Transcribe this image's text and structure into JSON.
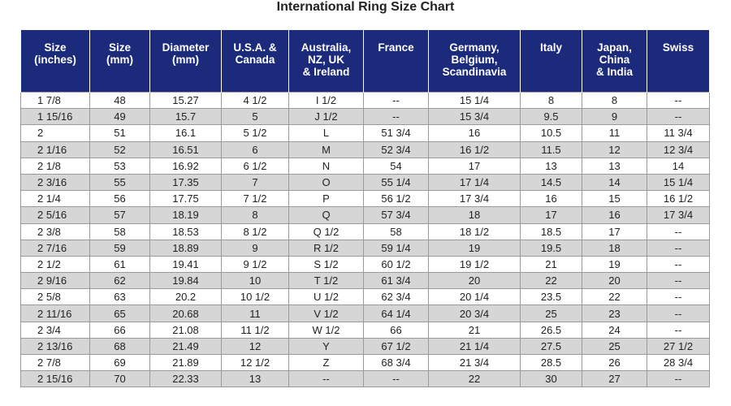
{
  "title": "International Ring Size Chart",
  "table": {
    "headers": [
      "Size\n(inches)",
      "Size\n(mm)",
      "Diameter\n(mm)",
      "U.S.A. &\nCanada",
      "Australia,\nNZ, UK\n& Ireland",
      "France",
      "Germany,\nBelgium,\nScandinavia",
      "Italy",
      "Japan,\nChina\n& India",
      "Swiss"
    ],
    "rows": [
      [
        "1  7/8",
        "48",
        "15.27",
        "4 1/2",
        "I 1/2",
        "--",
        "15 1/4",
        "8",
        "8",
        "--"
      ],
      [
        "1 15/16",
        "49",
        "15.7",
        "5",
        "J 1/2",
        "--",
        "15 3/4",
        "9.5",
        "9",
        "--"
      ],
      [
        "2",
        "51",
        "16.1",
        "5 1/2",
        "L",
        "51 3/4",
        "16",
        "10.5",
        "11",
        "11 3/4"
      ],
      [
        "2  1/16",
        "52",
        "16.51",
        "6",
        "M",
        "52 3/4",
        "16 1/2",
        "11.5",
        "12",
        "12 3/4"
      ],
      [
        "2  1/8",
        "53",
        "16.92",
        "6 1/2",
        "N",
        "54",
        "17",
        "13",
        "13",
        "14"
      ],
      [
        "2  3/16",
        "55",
        "17.35",
        "7",
        "O",
        "55 1/4",
        "17 1/4",
        "14.5",
        "14",
        "15 1/4"
      ],
      [
        "2  1/4",
        "56",
        "17.75",
        "7 1/2",
        "P",
        "56 1/2",
        "17 3/4",
        "16",
        "15",
        "16 1/2"
      ],
      [
        "2  5/16",
        "57",
        "18.19",
        "8",
        "Q",
        "57 3/4",
        "18",
        "17",
        "16",
        "17 3/4"
      ],
      [
        "2  3/8",
        "58",
        "18.53",
        "8 1/2",
        "Q 1/2",
        "58",
        "18 1/2",
        "18.5",
        "17",
        "--"
      ],
      [
        "2  7/16",
        "59",
        "18.89",
        "9",
        "R 1/2",
        "59 1/4",
        "19",
        "19.5",
        "18",
        "--"
      ],
      [
        "2  1/2",
        "61",
        "19.41",
        "9 1/2",
        "S 1/2",
        "60 1/2",
        "19 1/2",
        "21",
        "19",
        "--"
      ],
      [
        "2  9/16",
        "62",
        "19.84",
        "10",
        "T 1/2",
        "61 3/4",
        "20",
        "22",
        "20",
        "--"
      ],
      [
        "2  5/8",
        "63",
        "20.2",
        "10 1/2",
        "U 1/2",
        "62 3/4",
        "20 1/4",
        "23.5",
        "22",
        "--"
      ],
      [
        "2 11/16",
        "65",
        "20.68",
        "11",
        "V 1/2",
        "64 1/4",
        "20 3/4",
        "25",
        "23",
        "--"
      ],
      [
        "2  3/4",
        "66",
        "21.08",
        "11 1/2",
        "W 1/2",
        "66",
        "21",
        "26.5",
        "24",
        "--"
      ],
      [
        "2 13/16",
        "68",
        "21.49",
        "12",
        "Y",
        "67 1/2",
        "21 1/4",
        "27.5",
        "25",
        "27 1/2"
      ],
      [
        "2  7/8",
        "69",
        "21.89",
        "12 1/2",
        "Z",
        "68 3/4",
        "21 3/4",
        "28.5",
        "26",
        "28 3/4"
      ],
      [
        "2 15/16",
        "70",
        "22.33",
        "13",
        "--",
        "--",
        "22",
        "30",
        "27",
        "--"
      ]
    ]
  }
}
